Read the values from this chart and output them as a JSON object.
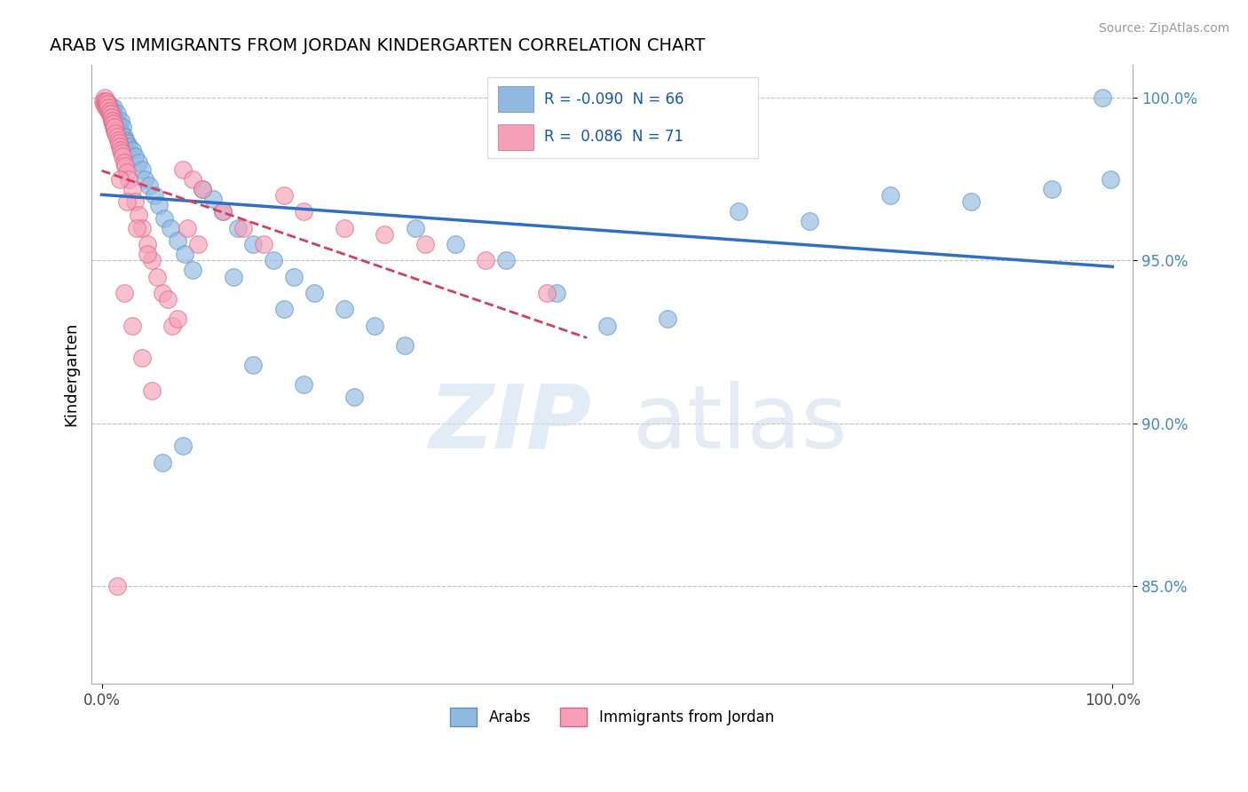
{
  "title": "ARAB VS IMMIGRANTS FROM JORDAN KINDERGARTEN CORRELATION CHART",
  "source": "Source: ZipAtlas.com",
  "ylabel": "Kindergarten",
  "ytick_labels_right": [
    "100.0%",
    "95.0%",
    "90.0%",
    "85.0%"
  ],
  "ytick_values": [
    1.0,
    0.95,
    0.9,
    0.85
  ],
  "xtick_labels": [
    "0.0%",
    "100.0%"
  ],
  "xtick_values": [
    0.0,
    1.0
  ],
  "blue_color": "#91b9e0",
  "blue_edge_color": "#5590cc",
  "pink_color": "#f5a0b8",
  "pink_edge_color": "#e06080",
  "blue_line_color": "#3070c0",
  "pink_line_color": "#d04060",
  "legend_blue_label": "R = -0.090  N = 66",
  "legend_pink_label": "R =  0.086  N = 71",
  "watermark_zip": "ZIP",
  "watermark_atlas": "atlas",
  "watermark_color": "#c8ddf0",
  "xlim": [
    -0.01,
    1.02
  ],
  "ylim": [
    0.82,
    1.01
  ],
  "blue_x": [
    0.003,
    0.005,
    0.006,
    0.007,
    0.008,
    0.009,
    0.01,
    0.011,
    0.012,
    0.013,
    0.014,
    0.015,
    0.016,
    0.017,
    0.018,
    0.019,
    0.02,
    0.021,
    0.022,
    0.023,
    0.025,
    0.027,
    0.03,
    0.033,
    0.036,
    0.04,
    0.043,
    0.047,
    0.052,
    0.057,
    0.062,
    0.068,
    0.075,
    0.082,
    0.09,
    0.1,
    0.11,
    0.12,
    0.135,
    0.15,
    0.17,
    0.19,
    0.21,
    0.24,
    0.27,
    0.31,
    0.35,
    0.4,
    0.45,
    0.5,
    0.56,
    0.63,
    0.7,
    0.78,
    0.86,
    0.94,
    0.99,
    0.998,
    0.15,
    0.2,
    0.25,
    0.3,
    0.18,
    0.13,
    0.08,
    0.06
  ],
  "blue_y": [
    0.999,
    0.998,
    0.997,
    0.998,
    0.996,
    0.997,
    0.996,
    0.995,
    0.997,
    0.994,
    0.993,
    0.995,
    0.992,
    0.991,
    0.99,
    0.993,
    0.989,
    0.991,
    0.988,
    0.987,
    0.986,
    0.985,
    0.984,
    0.982,
    0.98,
    0.978,
    0.975,
    0.973,
    0.97,
    0.967,
    0.963,
    0.96,
    0.956,
    0.952,
    0.947,
    0.972,
    0.969,
    0.965,
    0.96,
    0.955,
    0.95,
    0.945,
    0.94,
    0.935,
    0.93,
    0.96,
    0.955,
    0.95,
    0.94,
    0.93,
    0.932,
    0.965,
    0.962,
    0.97,
    0.968,
    0.972,
    1.0,
    0.975,
    0.918,
    0.912,
    0.908,
    0.924,
    0.935,
    0.945,
    0.893,
    0.888
  ],
  "pink_x": [
    0.001,
    0.002,
    0.003,
    0.003,
    0.004,
    0.004,
    0.005,
    0.005,
    0.006,
    0.006,
    0.007,
    0.007,
    0.008,
    0.008,
    0.009,
    0.009,
    0.01,
    0.01,
    0.011,
    0.011,
    0.012,
    0.012,
    0.013,
    0.013,
    0.014,
    0.015,
    0.016,
    0.017,
    0.018,
    0.019,
    0.02,
    0.021,
    0.022,
    0.023,
    0.025,
    0.027,
    0.03,
    0.033,
    0.036,
    0.04,
    0.045,
    0.05,
    0.06,
    0.07,
    0.08,
    0.09,
    0.1,
    0.12,
    0.14,
    0.16,
    0.18,
    0.2,
    0.24,
    0.28,
    0.32,
    0.38,
    0.44,
    0.018,
    0.025,
    0.035,
    0.045,
    0.055,
    0.065,
    0.075,
    0.085,
    0.095,
    0.015,
    0.022,
    0.03,
    0.04,
    0.05
  ],
  "pink_y": [
    0.999,
    0.998,
    1.0,
    0.999,
    0.998,
    0.997,
    0.998,
    0.999,
    0.997,
    0.998,
    0.996,
    0.997,
    0.995,
    0.996,
    0.994,
    0.995,
    0.993,
    0.994,
    0.992,
    0.993,
    0.991,
    0.992,
    0.99,
    0.991,
    0.989,
    0.988,
    0.987,
    0.986,
    0.985,
    0.984,
    0.983,
    0.982,
    0.98,
    0.979,
    0.977,
    0.975,
    0.972,
    0.968,
    0.964,
    0.96,
    0.955,
    0.95,
    0.94,
    0.93,
    0.978,
    0.975,
    0.972,
    0.965,
    0.96,
    0.955,
    0.97,
    0.965,
    0.96,
    0.958,
    0.955,
    0.95,
    0.94,
    0.975,
    0.968,
    0.96,
    0.952,
    0.945,
    0.938,
    0.932,
    0.96,
    0.955,
    0.85,
    0.94,
    0.93,
    0.92,
    0.91
  ]
}
